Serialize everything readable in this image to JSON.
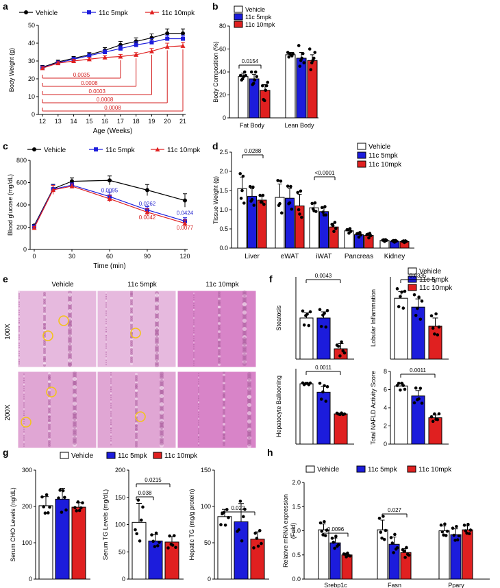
{
  "colors": {
    "vehicle": "#ffffff",
    "vehicle_line": "#000000",
    "c5": "#1c1cdc",
    "c10": "#e02020",
    "pval_red": "#d42020",
    "pval_blue": "#2a2ad0",
    "circle": "#f3c31a",
    "he_light": "#e7c3e0",
    "he_dark": "#c77fbd"
  },
  "legend": {
    "vehicle": "Vehicle",
    "c5": "11c 5mpk",
    "c10": "11c 10mpk"
  },
  "panels": {
    "a": "a",
    "b": "b",
    "c": "c",
    "d": "d",
    "e": "e",
    "f": "f",
    "g": "g",
    "h": "h"
  },
  "histology": {
    "columns": [
      "Vehicle",
      "11c 5mpk",
      "11c 10mpk"
    ],
    "rows": [
      "100X",
      "200X"
    ]
  },
  "chart_data": [
    {
      "id": "a",
      "type": "line",
      "xlabel": "Age (Weeks)",
      "ylabel": "Body Weight (g)",
      "x": [
        12,
        13,
        14,
        15,
        16,
        17,
        18,
        19,
        20,
        21
      ],
      "xlim": [
        12,
        21
      ],
      "ylim": [
        0,
        50
      ],
      "xticks": [
        "12",
        "13",
        "14",
        "15",
        "16",
        "17",
        "18",
        "19",
        "20",
        "21"
      ],
      "yticks": [
        "0",
        "10",
        "20",
        "30",
        "40",
        "50"
      ],
      "series": [
        {
          "name": "Vehicle",
          "values": [
            26.5,
            29.5,
            31.5,
            33.5,
            36,
            39,
            41,
            43,
            45.5,
            45.5
          ],
          "err": [
            1,
            1,
            1,
            1.2,
            1.5,
            2,
            2,
            2.2,
            2.5,
            2.5
          ]
        },
        {
          "name": "11c 5mpk",
          "values": [
            26.2,
            29,
            31,
            33,
            35,
            37,
            39,
            40.5,
            42.5,
            42.5
          ],
          "err": [
            1,
            1,
            1,
            1,
            1.2,
            1.5,
            1.8,
            2,
            2,
            2
          ]
        },
        {
          "name": "11c 10mpk",
          "values": [
            26,
            28.8,
            30,
            31,
            32,
            32.5,
            33.5,
            35.5,
            38,
            38.5
          ],
          "err": [
            0.8,
            0.8,
            1,
            1,
            1,
            1.2,
            1.2,
            1.5,
            2,
            2
          ]
        }
      ],
      "annotations": [
        "0.0035",
        "0.0008",
        "0.0003",
        "0.0008",
        "0.0008"
      ],
      "annotation_weeks": [
        17,
        18,
        19,
        20,
        21
      ]
    },
    {
      "id": "b",
      "type": "bar",
      "ylabel": "Body Composition (%)",
      "categories": [
        "Fat Body",
        "Lean Body"
      ],
      "ylim": [
        0,
        80
      ],
      "yticks": [
        "0",
        "20",
        "40",
        "60",
        "80"
      ],
      "series": [
        {
          "name": "Vehicle",
          "values": [
            36,
            55
          ],
          "err": [
            3,
            2
          ]
        },
        {
          "name": "11c 5mpk",
          "values": [
            34,
            52
          ],
          "err": [
            4,
            5
          ]
        },
        {
          "name": "11c 10mpk",
          "values": [
            24,
            50
          ],
          "err": [
            5,
            5
          ]
        }
      ],
      "points": [
        [
          [
            37,
            33,
            34,
            36,
            40,
            37
          ],
          [
            57,
            53,
            56,
            55,
            54,
            56
          ]
        ],
        [
          [
            40,
            29,
            30,
            33,
            40,
            36
          ],
          [
            63,
            45,
            50,
            52,
            56,
            48
          ]
        ],
        [
          [
            28,
            16,
            15,
            24,
            28,
            31
          ],
          [
            60,
            42,
            48,
            50,
            52,
            57
          ]
        ]
      ],
      "annotations": [
        {
          "text": "0.0154",
          "cat": 0
        }
      ]
    },
    {
      "id": "c",
      "type": "line",
      "xlabel": "Time (min)",
      "ylabel": "Blood glucose (mg/dL)",
      "x": [
        0,
        15,
        30,
        60,
        90,
        120
      ],
      "xlim": [
        0,
        120
      ],
      "ylim": [
        0,
        800
      ],
      "xticks": [
        "0",
        "30",
        "60",
        "90",
        "120"
      ],
      "xtick_values": [
        0,
        30,
        60,
        90,
        120
      ],
      "yticks": [
        "0",
        "200",
        "400",
        "600",
        "800"
      ],
      "series": [
        {
          "name": "Vehicle",
          "values": [
            215,
            545,
            612,
            620,
            533,
            440
          ],
          "err": [
            10,
            40,
            30,
            40,
            50,
            60
          ]
        },
        {
          "name": "11c 5mpk",
          "values": [
            205,
            540,
            578,
            475,
            355,
            255
          ],
          "err": [
            10,
            40,
            20,
            40,
            30,
            30
          ]
        },
        {
          "name": "11c 10mpk",
          "values": [
            195,
            535,
            568,
            455,
            335,
            235
          ],
          "err": [
            10,
            40,
            20,
            30,
            30,
            30
          ]
        }
      ],
      "annotations": [
        {
          "text": "0.0095",
          "x": 60,
          "y": 515,
          "color": "blue"
        },
        {
          "text": "0.0262",
          "x": 90,
          "y": 395,
          "color": "blue"
        },
        {
          "text": "0.0424",
          "x": 120,
          "y": 310,
          "color": "blue"
        },
        {
          "text": "0.0042",
          "x": 90,
          "y": 272,
          "color": "red"
        },
        {
          "text": "0.0077",
          "x": 120,
          "y": 178,
          "color": "red"
        }
      ]
    },
    {
      "id": "d",
      "type": "bar",
      "ylabel": "Tissue Weight (g)",
      "categories": [
        "Liver",
        "eWAT",
        "iWAT",
        "Pancreas",
        "Kidney"
      ],
      "ylim": [
        0,
        2.5
      ],
      "yticks": [
        "0.0",
        "0.5",
        "1.0",
        "1.5",
        "2.0",
        "2.5"
      ],
      "series": [
        {
          "name": "Vehicle",
          "values": [
            1.55,
            1.32,
            1.05,
            0.45,
            0.2
          ],
          "err": [
            0.3,
            0.35,
            0.1,
            0.05,
            0.02
          ]
        },
        {
          "name": "11c 5mpk",
          "values": [
            1.35,
            1.3,
            0.95,
            0.35,
            0.18
          ],
          "err": [
            0.2,
            0.25,
            0.1,
            0.05,
            0.02
          ]
        },
        {
          "name": "11c 10mpk",
          "values": [
            1.25,
            1.1,
            0.55,
            0.33,
            0.17
          ],
          "err": [
            0.1,
            0.3,
            0.1,
            0.05,
            0.02
          ]
        }
      ],
      "annotations": [
        {
          "text": "0.0288",
          "cat": 0
        },
        {
          "text": "<0.0001",
          "cat": 2
        }
      ]
    },
    {
      "id": "f1",
      "type": "bar",
      "ylabel": "Steatosis",
      "categories": [
        "Vehicle",
        "11c 5mpk",
        "11c 10mpk"
      ],
      "ylim": [
        0,
        4
      ],
      "values": [
        2.0,
        2.0,
        0.5
      ],
      "err": [
        0.25,
        0.3,
        0.25
      ],
      "annotations": [
        {
          "text": "0.0043"
        }
      ]
    },
    {
      "id": "f2",
      "type": "bar",
      "ylabel": "Lobular Inflammation",
      "categories": [
        "Vehicle",
        "11c 5mpk",
        "11c 10mpk"
      ],
      "ylim": [
        0,
        2.5
      ],
      "values": [
        1.85,
        1.58,
        1.0
      ],
      "err": [
        0.2,
        0.25,
        0.25
      ],
      "annotations": [
        {
          "text": "0.0335"
        }
      ]
    },
    {
      "id": "f3",
      "type": "bar",
      "ylabel": "Hepatocyte Ballooning",
      "categories": [
        "Vehicle",
        "11c 5mpk",
        "11c 10mpk"
      ],
      "ylim": [
        0,
        2.5
      ],
      "values": [
        2.0,
        1.72,
        1.0
      ],
      "err": [
        0.02,
        0.2,
        0.02
      ],
      "annotations": [
        {
          "text": "0.0011"
        }
      ]
    },
    {
      "id": "f4",
      "type": "bar",
      "ylabel": "Total NAFLD Activity Score",
      "categories": [
        "Vehicle",
        "11c 5mpk",
        "11c 10mpk"
      ],
      "ylim": [
        0,
        8
      ],
      "yticks": [
        "0",
        "2",
        "4",
        "6",
        "8"
      ],
      "values": [
        6.4,
        5.3,
        2.9
      ],
      "err": [
        0.3,
        0.6,
        0.3
      ],
      "annotations": [
        {
          "text": "0.0011"
        }
      ]
    },
    {
      "id": "g1",
      "type": "bar",
      "ylabel": "Serum CHO Levels (ng/dL)",
      "categories": [
        "Vehicle",
        "11c 5mpk",
        "11c 10mpk"
      ],
      "ylim": [
        0,
        300
      ],
      "yticks": [
        "0",
        "100",
        "200",
        "300"
      ],
      "values": [
        202,
        220,
        198
      ],
      "err": [
        25,
        30,
        12
      ]
    },
    {
      "id": "g2",
      "type": "bar",
      "ylabel": "Serum TG Levels (mg/dL)",
      "categories": [
        "Vehicle",
        "11c 5mpk",
        "11c 10mpk"
      ],
      "ylim": [
        0,
        200
      ],
      "yticks": [
        "0",
        "50",
        "100",
        "150",
        "200"
      ],
      "values": [
        104,
        70,
        68
      ],
      "err": [
        35,
        12,
        10
      ],
      "annotations": [
        {
          "text": "0.038"
        },
        {
          "text": "0.0215"
        }
      ]
    },
    {
      "id": "g3",
      "type": "bar",
      "ylabel": "Hepatic TG (mg/g protein)",
      "categories": [
        "Vehicle",
        "11c 5mpk",
        "11c 10mpk"
      ],
      "ylim": [
        0,
        150
      ],
      "yticks": [
        "0",
        "50",
        "100",
        "150"
      ],
      "values": [
        86,
        79,
        55
      ],
      "err": [
        10,
        25,
        10
      ],
      "annotations": [
        {
          "text": "0.022"
        }
      ]
    },
    {
      "id": "h",
      "type": "bar",
      "ylabel": "Relative mRNA expression\n(Fold)",
      "categories": [
        "Srebp1c",
        "Fasn",
        "Pparγ"
      ],
      "ylim": [
        0,
        2.0
      ],
      "yticks": [
        "0.0",
        "0.5",
        "1.0",
        "1.5",
        "2.0"
      ],
      "series": [
        {
          "name": "Vehicle",
          "values": [
            1.02,
            1.02,
            1.0
          ],
          "err": [
            0.12,
            0.2,
            0.1
          ]
        },
        {
          "name": "11c 5mpk",
          "values": [
            0.75,
            0.72,
            0.92
          ],
          "err": [
            0.1,
            0.15,
            0.12
          ]
        },
        {
          "name": "11c 10mpk",
          "values": [
            0.5,
            0.55,
            1.02
          ],
          "err": [
            0.03,
            0.08,
            0.08
          ]
        }
      ],
      "annotations": [
        {
          "text": "0.0096",
          "cat": 0
        },
        {
          "text": "0.027",
          "cat": 1
        }
      ]
    }
  ]
}
